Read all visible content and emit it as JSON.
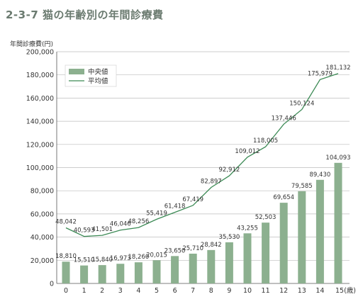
{
  "chart_data": {
    "type": "bar",
    "title": "2-3-7 猫の年齢別の年間診療費",
    "ylabel": "年間診療費(円)",
    "x_unit": "(歳)",
    "categories": [
      "0",
      "1",
      "2",
      "3",
      "4",
      "5",
      "6",
      "7",
      "8",
      "9",
      "10",
      "11",
      "12",
      "13",
      "14",
      "15"
    ],
    "ylim": [
      0,
      200000
    ],
    "y_ticks": [
      "0",
      "20,000",
      "40,000",
      "60,000",
      "80,000",
      "100,000",
      "120,000",
      "140,000",
      "160,000",
      "180,000",
      "200,000"
    ],
    "legend_position": "top-left",
    "series": [
      {
        "name": "中央値",
        "kind": "bar",
        "color": "#8cb08f",
        "values": [
          18810,
          15510,
          15840,
          16973,
          18260,
          20015,
          23650,
          25710,
          28842,
          35530,
          43255,
          52503,
          69654,
          79585,
          89430,
          104093
        ],
        "labels": [
          "18,810",
          "15,510",
          "15,840",
          "16,973",
          "18,260",
          "20,015",
          "23,650",
          "25,710",
          "28,842",
          "35,530",
          "43,255",
          "52,503",
          "69,654",
          "79,585",
          "89,430",
          "104,093"
        ]
      },
      {
        "name": "平均値",
        "kind": "line",
        "color": "#3c8a55",
        "values": [
          48042,
          40593,
          41501,
          46046,
          48256,
          55419,
          61418,
          67419,
          82897,
          92912,
          109012,
          118005,
          137446,
          150124,
          175979,
          181132
        ],
        "labels": [
          "48,042",
          "40,593",
          "41,501",
          "46,046",
          "48,256",
          "55,419",
          "61,418",
          "67,419",
          "82,897",
          "92,912",
          "109,012",
          "118,005",
          "137,446",
          "150,124",
          "175,979",
          "181,132"
        ]
      }
    ]
  }
}
